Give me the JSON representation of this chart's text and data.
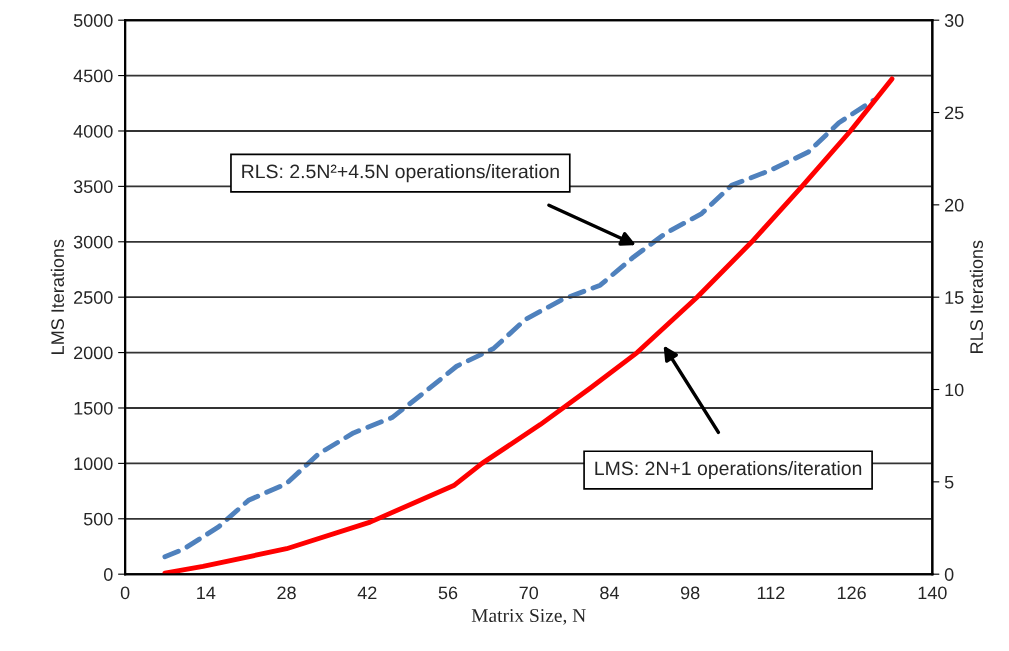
{
  "chart_data": {
    "type": "line",
    "xlabel": "Matrix Size, N",
    "ylabel": "LMS Iterations",
    "y2label": "RLS Iterations",
    "xlim": [
      0,
      140
    ],
    "xticks": [
      0,
      14,
      28,
      42,
      56,
      70,
      84,
      98,
      112,
      126,
      140
    ],
    "ylim": [
      0,
      5000
    ],
    "yticks": [
      0,
      500,
      1000,
      1500,
      2000,
      2500,
      3000,
      3500,
      4000,
      4500,
      5000
    ],
    "y2lim": [
      0,
      30
    ],
    "y2ticks": [
      0,
      5,
      10,
      15,
      20,
      25,
      30
    ],
    "grid": "y",
    "legend": false,
    "series": [
      {
        "color": "#ff0000",
        "line_style": "solid",
        "x": [
          6.9,
          13.5,
          28,
          42.5,
          57,
          61.9,
          72,
          80.7,
          88.8,
          99.2,
          108.7,
          117.4,
          125.8,
          133
        ],
        "values": [
          10,
          70,
          230,
          470,
          800,
          1000,
          1350,
          1680,
          2000,
          2500,
          3000,
          3500,
          4000,
          4470
        ]
      },
      {
        "color": "#4f81bd",
        "line_style": "dashed",
        "axis": "y2",
        "x": [
          6.9,
          10.1,
          16.2,
          21.4,
          28.0,
          33.5,
          39.6,
          46.3,
          52.0,
          57.5,
          63.9,
          69.4,
          75.8,
          82.4,
          88.2,
          93.7,
          100.0,
          105.2,
          111.9,
          118.5,
          123.8,
          129.8
        ],
        "values": [
          0.94,
          1.35,
          2.56,
          4.0,
          4.91,
          6.5,
          7.65,
          8.48,
          9.87,
          11.26,
          12.22,
          13.79,
          14.87,
          15.65,
          17.18,
          18.45,
          19.53,
          21.06,
          21.87,
          22.86,
          24.45,
          25.66
        ]
      }
    ],
    "annotations": [
      "RLS: 2.5N²+4.5N operations/iteration",
      "LMS: 2N+1 operations/iteration"
    ]
  }
}
